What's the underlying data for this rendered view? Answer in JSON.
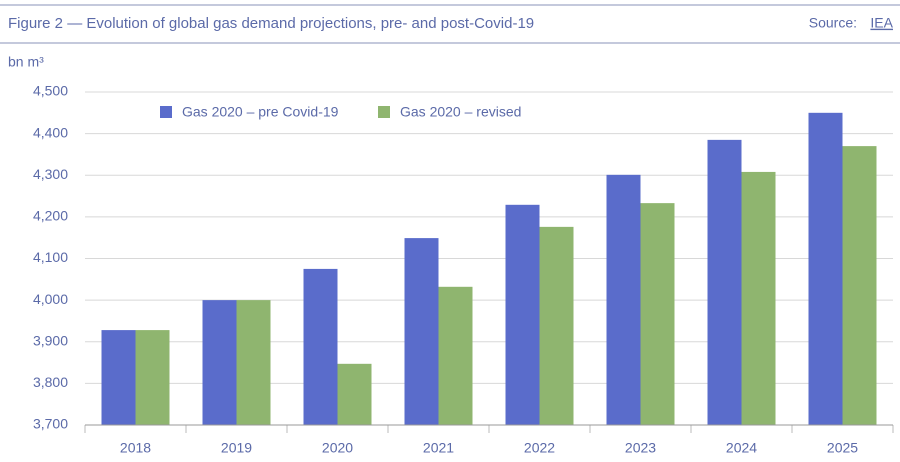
{
  "chart_data": {
    "type": "bar",
    "title": "Figure 2 — Evolution of global gas demand projections, pre- and post-Covid-19",
    "source_label": "Source:",
    "source_link": "IEA",
    "y_label": "bn m³",
    "categories": [
      "2018",
      "2019",
      "2020",
      "2021",
      "2022",
      "2023",
      "2024",
      "2025"
    ],
    "series": [
      {
        "name": "Gas 2020 – pre Covid-19",
        "color": "#5a6ccb",
        "values": [
          3928,
          4000,
          4075,
          4149,
          4229,
          4301,
          4385,
          4450
        ]
      },
      {
        "name": "Gas 2020 – revised",
        "color": "#8fb56f",
        "values": [
          3928,
          4000,
          3847,
          4032,
          4176,
          4233,
          4308,
          4370
        ]
      }
    ],
    "ylim": [
      3700,
      4500
    ],
    "yticks": [
      {
        "value": 3700,
        "label": "3,700"
      },
      {
        "value": 3800,
        "label": "3,800"
      },
      {
        "value": 3900,
        "label": "3,900"
      },
      {
        "value": 4000,
        "label": "4,000"
      },
      {
        "value": 4100,
        "label": "4,100"
      },
      {
        "value": 4200,
        "label": "4,200"
      },
      {
        "value": 4300,
        "label": "4,300"
      },
      {
        "value": 4400,
        "label": "4,400"
      },
      {
        "value": 4500,
        "label": "4,500"
      }
    ],
    "grid": true
  }
}
